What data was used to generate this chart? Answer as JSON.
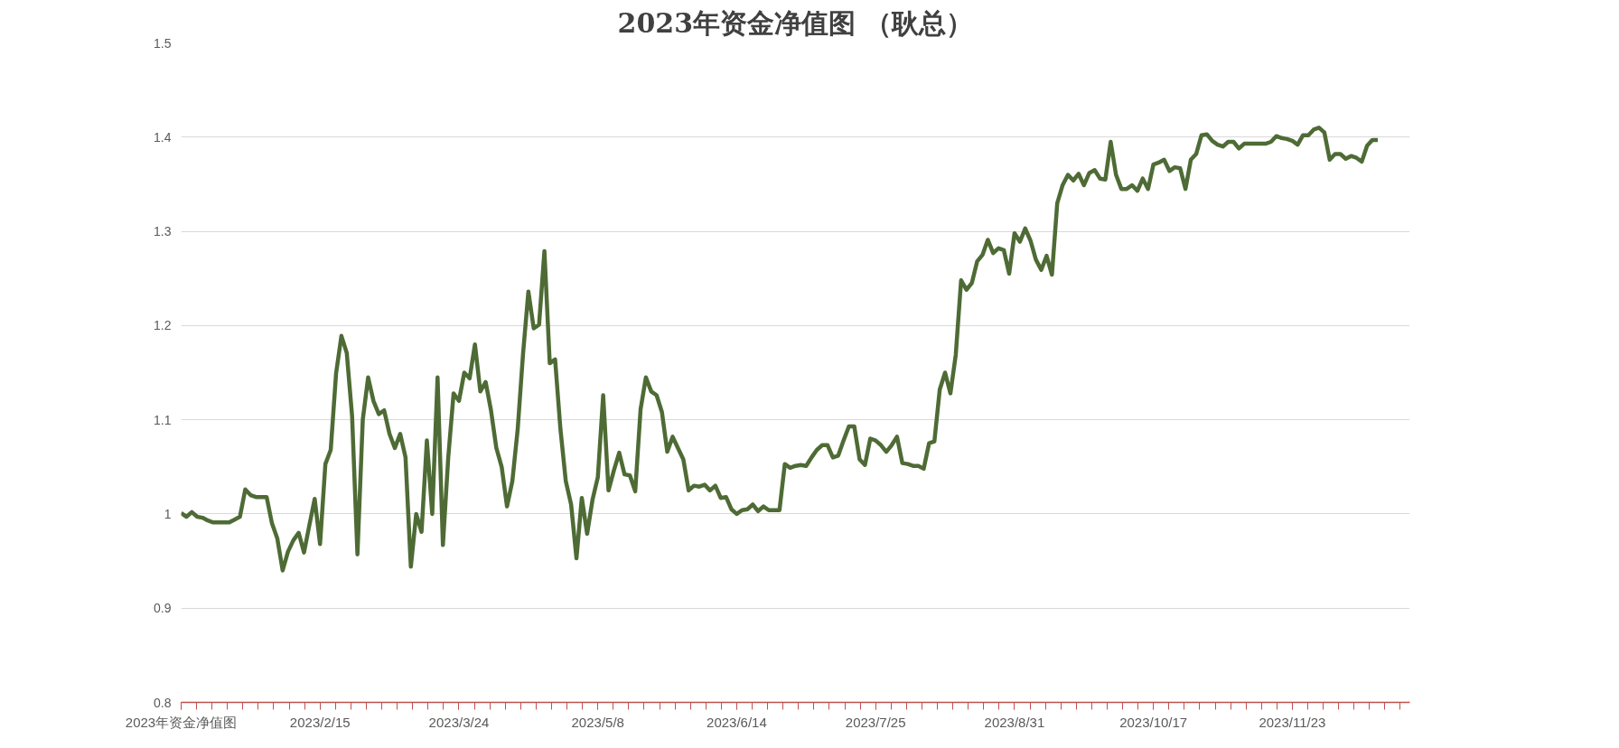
{
  "chart_data": {
    "type": "line",
    "title": "2023年资金净值图 （耿总）",
    "categories": [
      "2023年资金净值图",
      null,
      null,
      null,
      null,
      null,
      null,
      null,
      null,
      null,
      null,
      null,
      null,
      null,
      null,
      null,
      null,
      null,
      null,
      null,
      null,
      null,
      null,
      null,
      null,
      null,
      "2023/2/15",
      null,
      null,
      null,
      null,
      null,
      null,
      null,
      null,
      null,
      null,
      null,
      null,
      null,
      null,
      null,
      null,
      null,
      null,
      null,
      null,
      null,
      null,
      null,
      null,
      null,
      "2023/3/24",
      null,
      null,
      null,
      null,
      null,
      null,
      null,
      null,
      null,
      null,
      null,
      null,
      null,
      null,
      null,
      null,
      null,
      null,
      null,
      null,
      null,
      null,
      null,
      null,
      null,
      "2023/5/8",
      null,
      null,
      null,
      null,
      null,
      null,
      null,
      null,
      null,
      null,
      null,
      null,
      null,
      null,
      null,
      null,
      null,
      null,
      null,
      null,
      null,
      null,
      null,
      null,
      null,
      "2023/6/14",
      null,
      null,
      null,
      null,
      null,
      null,
      null,
      null,
      null,
      null,
      null,
      null,
      null,
      null,
      null,
      null,
      null,
      null,
      null,
      null,
      null,
      null,
      null,
      null,
      null,
      "2023/7/25",
      null,
      null,
      null,
      null,
      null,
      null,
      null,
      null,
      null,
      null,
      null,
      null,
      null,
      null,
      null,
      null,
      null,
      null,
      null,
      null,
      null,
      null,
      null,
      null,
      null,
      "2023/8/31",
      null,
      null,
      null,
      null,
      null,
      null,
      null,
      null,
      null,
      null,
      null,
      null,
      null,
      null,
      null,
      null,
      null,
      null,
      null,
      null,
      null,
      null,
      null,
      null,
      null,
      "2023/10/17",
      null,
      null,
      null,
      null,
      null,
      null,
      null,
      null,
      null,
      null,
      null,
      null,
      null,
      null,
      null,
      null,
      null,
      null,
      null,
      null,
      null,
      null,
      null,
      null,
      null,
      "2023/11/23",
      null,
      null,
      null,
      null,
      null,
      null,
      null,
      null,
      null,
      null,
      null,
      null,
      null,
      null,
      null,
      null,
      null,
      null,
      null,
      null,
      null,
      null
    ],
    "series": [
      {
        "color": "#4e6b35",
        "values": [
          1.001,
          0.997,
          1.002,
          0.997,
          0.996,
          0.993,
          0.991,
          0.991,
          0.991,
          0.991,
          0.994,
          0.997,
          1.026,
          1.02,
          1.018,
          1.018,
          1.018,
          0.99,
          0.974,
          0.94,
          0.96,
          0.972,
          0.98,
          0.959,
          0.988,
          1.016,
          0.968,
          1.053,
          1.068,
          1.149,
          1.189,
          1.171,
          1.104,
          0.957,
          1.1,
          1.145,
          1.12,
          1.106,
          1.11,
          1.085,
          1.07,
          1.085,
          1.06,
          0.944,
          1.0,
          0.981,
          1.078,
          1.0,
          1.145,
          0.967,
          1.06,
          1.128,
          1.12,
          1.15,
          1.144,
          1.18,
          1.13,
          1.14,
          1.11,
          1.07,
          1.05,
          1.008,
          1.035,
          1.09,
          1.17,
          1.236,
          1.197,
          1.201,
          1.279,
          1.16,
          1.164,
          1.09,
          1.035,
          1.01,
          0.953,
          1.017,
          0.979,
          1.015,
          1.039,
          1.126,
          1.025,
          1.046,
          1.065,
          1.042,
          1.041,
          1.024,
          1.111,
          1.145,
          1.13,
          1.126,
          1.108,
          1.066,
          1.082,
          1.07,
          1.058,
          1.025,
          1.03,
          1.029,
          1.031,
          1.025,
          1.03,
          1.017,
          1.018,
          1.005,
          1.0,
          1.004,
          1.005,
          1.01,
          1.003,
          1.008,
          1.004,
          1.004,
          1.004,
          1.053,
          1.049,
          1.051,
          1.052,
          1.051,
          1.06,
          1.068,
          1.073,
          1.073,
          1.06,
          1.062,
          1.078,
          1.093,
          1.093,
          1.058,
          1.052,
          1.08,
          1.078,
          1.073,
          1.066,
          1.073,
          1.082,
          1.054,
          1.053,
          1.051,
          1.051,
          1.048,
          1.075,
          1.077,
          1.132,
          1.15,
          1.128,
          1.169,
          1.248,
          1.238,
          1.245,
          1.268,
          1.275,
          1.291,
          1.277,
          1.282,
          1.28,
          1.255,
          1.298,
          1.289,
          1.303,
          1.29,
          1.27,
          1.259,
          1.274,
          1.254,
          1.33,
          1.349,
          1.36,
          1.354,
          1.361,
          1.349,
          1.362,
          1.365,
          1.356,
          1.355,
          1.395,
          1.36,
          1.345,
          1.345,
          1.349,
          1.343,
          1.356,
          1.345,
          1.371,
          1.373,
          1.376,
          1.364,
          1.368,
          1.367,
          1.345,
          1.376,
          1.382,
          1.402,
          1.403,
          1.396,
          1.392,
          1.39,
          1.395,
          1.395,
          1.388,
          1.393,
          1.393,
          1.393,
          1.393,
          1.393,
          1.395,
          1.401,
          1.399,
          1.398,
          1.396,
          1.392,
          1.402,
          1.402,
          1.408,
          1.41,
          1.405,
          1.376,
          1.382,
          1.382,
          1.377,
          1.38,
          1.378,
          1.374,
          1.391,
          1.397,
          1.397,
          null,
          null,
          null,
          null,
          null,
          null
        ]
      }
    ],
    "ylim": [
      0.8,
      1.5
    ],
    "yticks": [
      0.8,
      0.9,
      1,
      1.1,
      1.2,
      1.3,
      1.4,
      1.5
    ],
    "grid": "y"
  }
}
